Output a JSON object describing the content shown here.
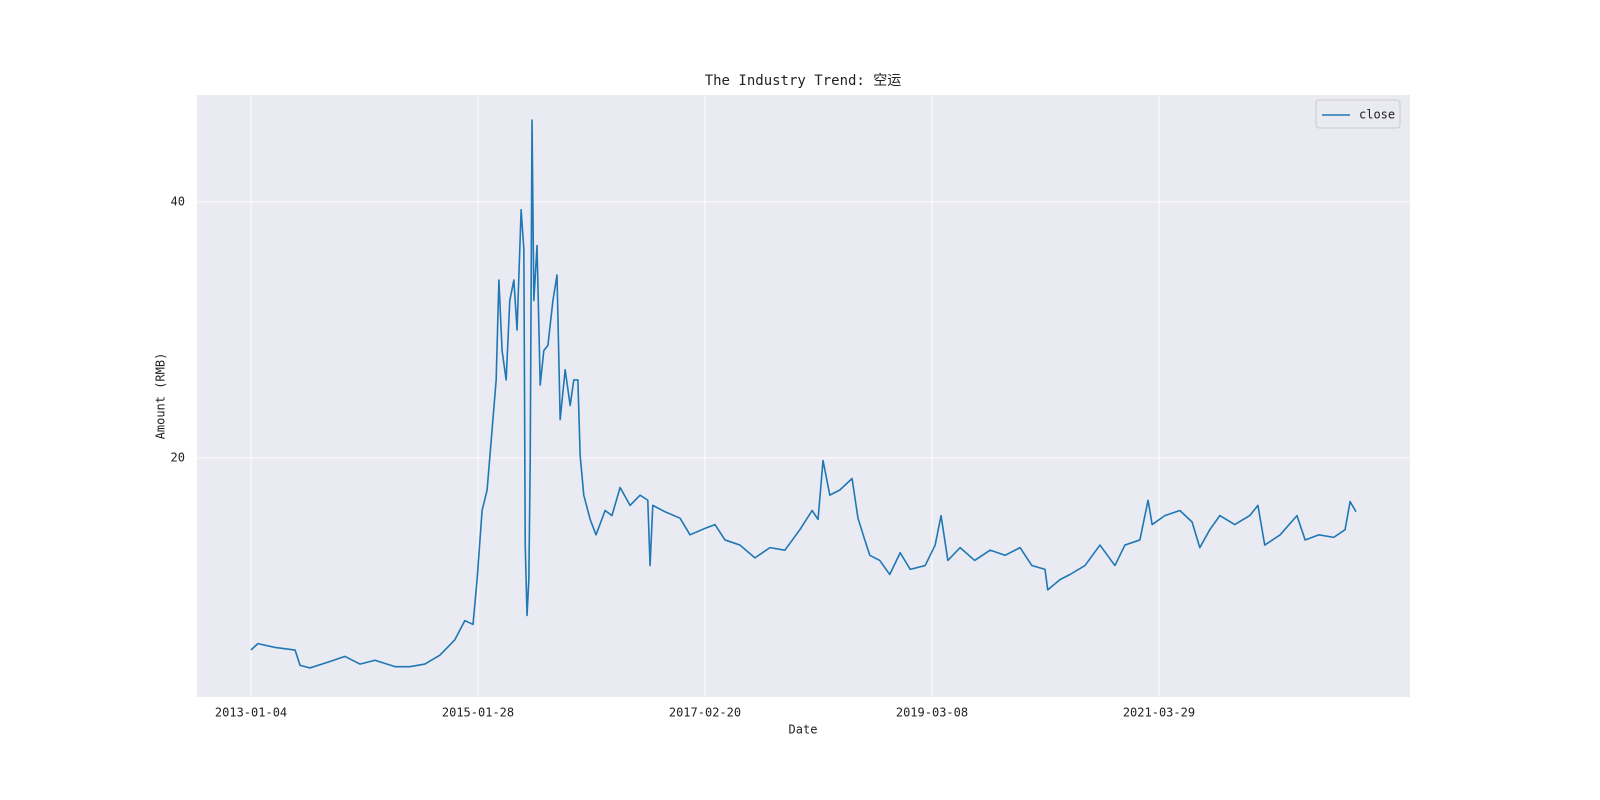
{
  "chart_data": {
    "type": "line",
    "title": "The Industry Trend: 空运",
    "xlabel": "Date",
    "ylabel": "Amount (RMB)",
    "x": [
      0,
      15,
      53,
      97,
      108,
      130,
      174,
      207,
      240,
      273,
      317,
      350,
      383,
      416,
      449,
      471,
      489,
      498,
      509,
      520,
      531,
      540,
      546,
      553,
      562,
      570,
      579,
      586,
      595,
      601,
      604,
      608,
      612,
      615,
      619,
      623,
      630,
      637,
      645,
      654,
      665,
      674,
      681,
      692,
      703,
      711,
      720,
      725,
      733,
      747,
      760,
      780,
      795,
      813,
      835,
      857,
      874,
      879,
      885,
      912,
      945,
      967,
      1000,
      1022,
      1044,
      1077,
      1110,
      1143,
      1176,
      1209,
      1236,
      1249,
      1260,
      1275,
      1297,
      1324,
      1337,
      1352,
      1363,
      1385,
      1407,
      1430,
      1452,
      1485,
      1507,
      1520,
      1535,
      1562,
      1594,
      1628,
      1661,
      1694,
      1720,
      1749,
      1755,
      1782,
      1804,
      1837,
      1870,
      1903,
      1925,
      1958,
      1976,
      1985,
      2013,
      2046,
      2073,
      2090,
      2112,
      2134,
      2167,
      2200,
      2218,
      2233,
      2267,
      2304,
      2322,
      2352,
      2385,
      2410,
      2421,
      2434
    ],
    "series": [
      {
        "name": "close",
        "color": "#1f77b4",
        "values": [
          5.0,
          5.5,
          5.2,
          5.0,
          3.8,
          3.6,
          4.1,
          4.5,
          3.9,
          4.2,
          3.7,
          3.7,
          3.9,
          4.6,
          5.8,
          7.3,
          7.0,
          10.5,
          15.9,
          17.5,
          22.2,
          26.1,
          33.9,
          28.4,
          26.1,
          32.3,
          33.9,
          30.0,
          39.4,
          36.3,
          13.2,
          7.7,
          10.5,
          19.8,
          46.4,
          32.3,
          36.6,
          25.7,
          28.4,
          28.8,
          32.3,
          34.3,
          23.0,
          26.9,
          24.1,
          26.1,
          26.1,
          20.2,
          17.1,
          15.2,
          14.0,
          15.9,
          15.5,
          17.7,
          16.3,
          17.1,
          16.7,
          11.6,
          16.3,
          15.8,
          15.3,
          14.0,
          14.5,
          14.8,
          13.6,
          13.2,
          12.2,
          13.0,
          12.8,
          14.4,
          15.9,
          15.2,
          19.8,
          17.1,
          17.5,
          18.4,
          15.3,
          13.6,
          12.4,
          12.0,
          10.9,
          12.6,
          11.3,
          11.6,
          13.2,
          15.5,
          12.0,
          13.0,
          12.0,
          12.8,
          12.4,
          13.0,
          11.6,
          11.3,
          9.7,
          10.5,
          10.9,
          11.6,
          13.2,
          11.6,
          13.2,
          13.6,
          16.7,
          14.8,
          15.5,
          15.9,
          15.0,
          13.0,
          14.4,
          15.5,
          14.8,
          15.5,
          16.3,
          13.2,
          14.0,
          15.5,
          13.6,
          14.0,
          13.8,
          14.4,
          16.6,
          15.8
        ]
      }
    ],
    "xlim": [
      -119,
      2553
    ],
    "xticks": [
      {
        "value": 0,
        "label": "2013-01-04"
      },
      {
        "value": 500,
        "label": "2015-01-28"
      },
      {
        "value": 1000,
        "label": "2017-02-20"
      },
      {
        "value": 1500,
        "label": "2019-03-08"
      },
      {
        "value": 2000,
        "label": "2021-03-29"
      }
    ],
    "ylim": [
      1.33,
      48.36
    ],
    "yticks": [
      20,
      40
    ],
    "grid": true,
    "legend": "upper right"
  }
}
